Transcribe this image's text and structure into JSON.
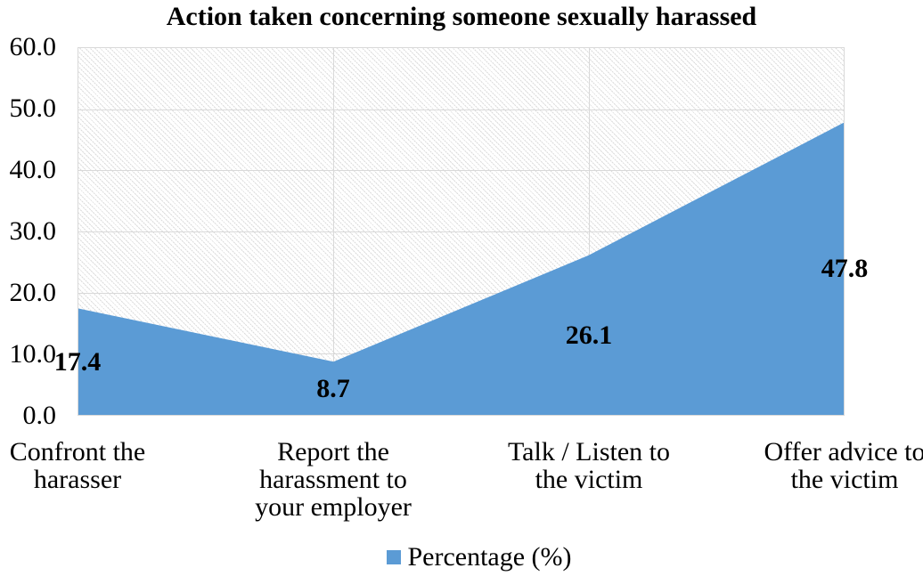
{
  "chart_data": {
    "type": "area",
    "title": "Action taken concerning someone sexually harassed",
    "categories": [
      "Confront the harasser",
      "Report the harassment to your employer",
      "Talk / Listen to the victim",
      "Offer advice to the victim"
    ],
    "series": [
      {
        "name": "Percentage (%)",
        "values": [
          17.4,
          8.7,
          26.1,
          47.8
        ]
      }
    ],
    "data_labels": [
      "17.4",
      "8.7",
      "26.1",
      "47.8"
    ],
    "ylim": [
      0,
      60
    ],
    "ytick_step": 10,
    "ytick_labels_top_down": [
      "60.0",
      "50.0",
      "40.0",
      "30.0",
      "20.0",
      "10.0",
      "0.0"
    ],
    "grid": true,
    "plot_background": "diagonal-hatch",
    "legend": {
      "position": "bottom",
      "label": "Percentage (%)"
    },
    "colors": {
      "series_fill": "#5B9BD5",
      "gridline": "#D9D9D9",
      "hatch": "#DCDCDC",
      "text": "#000000"
    }
  }
}
